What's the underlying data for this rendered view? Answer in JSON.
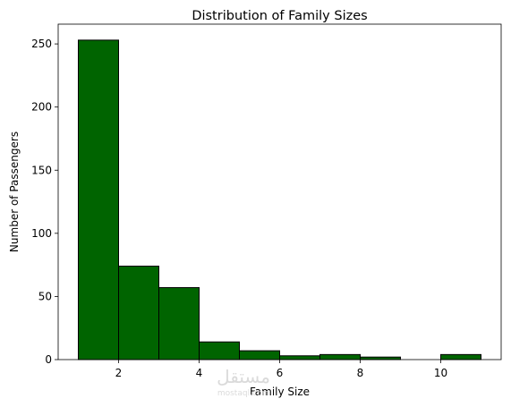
{
  "chart_data": {
    "type": "bar",
    "subtype": "histogram",
    "title": "Distribution of Family Sizes",
    "xlabel": "Family Size",
    "ylabel": "Number of Passengers",
    "bins": [
      {
        "x0": 1,
        "x1": 2,
        "value": 253
      },
      {
        "x0": 2,
        "x1": 3,
        "value": 74
      },
      {
        "x0": 3,
        "x1": 4,
        "value": 57
      },
      {
        "x0": 4,
        "x1": 5,
        "value": 14
      },
      {
        "x0": 5,
        "x1": 6,
        "value": 7
      },
      {
        "x0": 6,
        "x1": 7,
        "value": 3
      },
      {
        "x0": 7,
        "x1": 8,
        "value": 4
      },
      {
        "x0": 8,
        "x1": 9,
        "value": 2
      },
      {
        "x0": 9,
        "x1": 10,
        "value": 0
      },
      {
        "x0": 10,
        "x1": 11,
        "value": 4
      }
    ],
    "xlim": [
      0.5,
      11.5
    ],
    "ylim": [
      0,
      265.65
    ],
    "xticks": [
      2,
      4,
      6,
      8,
      10
    ],
    "yticks": [
      0,
      50,
      100,
      150,
      200,
      250
    ],
    "grid": false,
    "bar_color": "#006400",
    "edge_color": "#000000"
  },
  "watermark": {
    "text": "مستقل",
    "subtext": "mostaql.com"
  }
}
